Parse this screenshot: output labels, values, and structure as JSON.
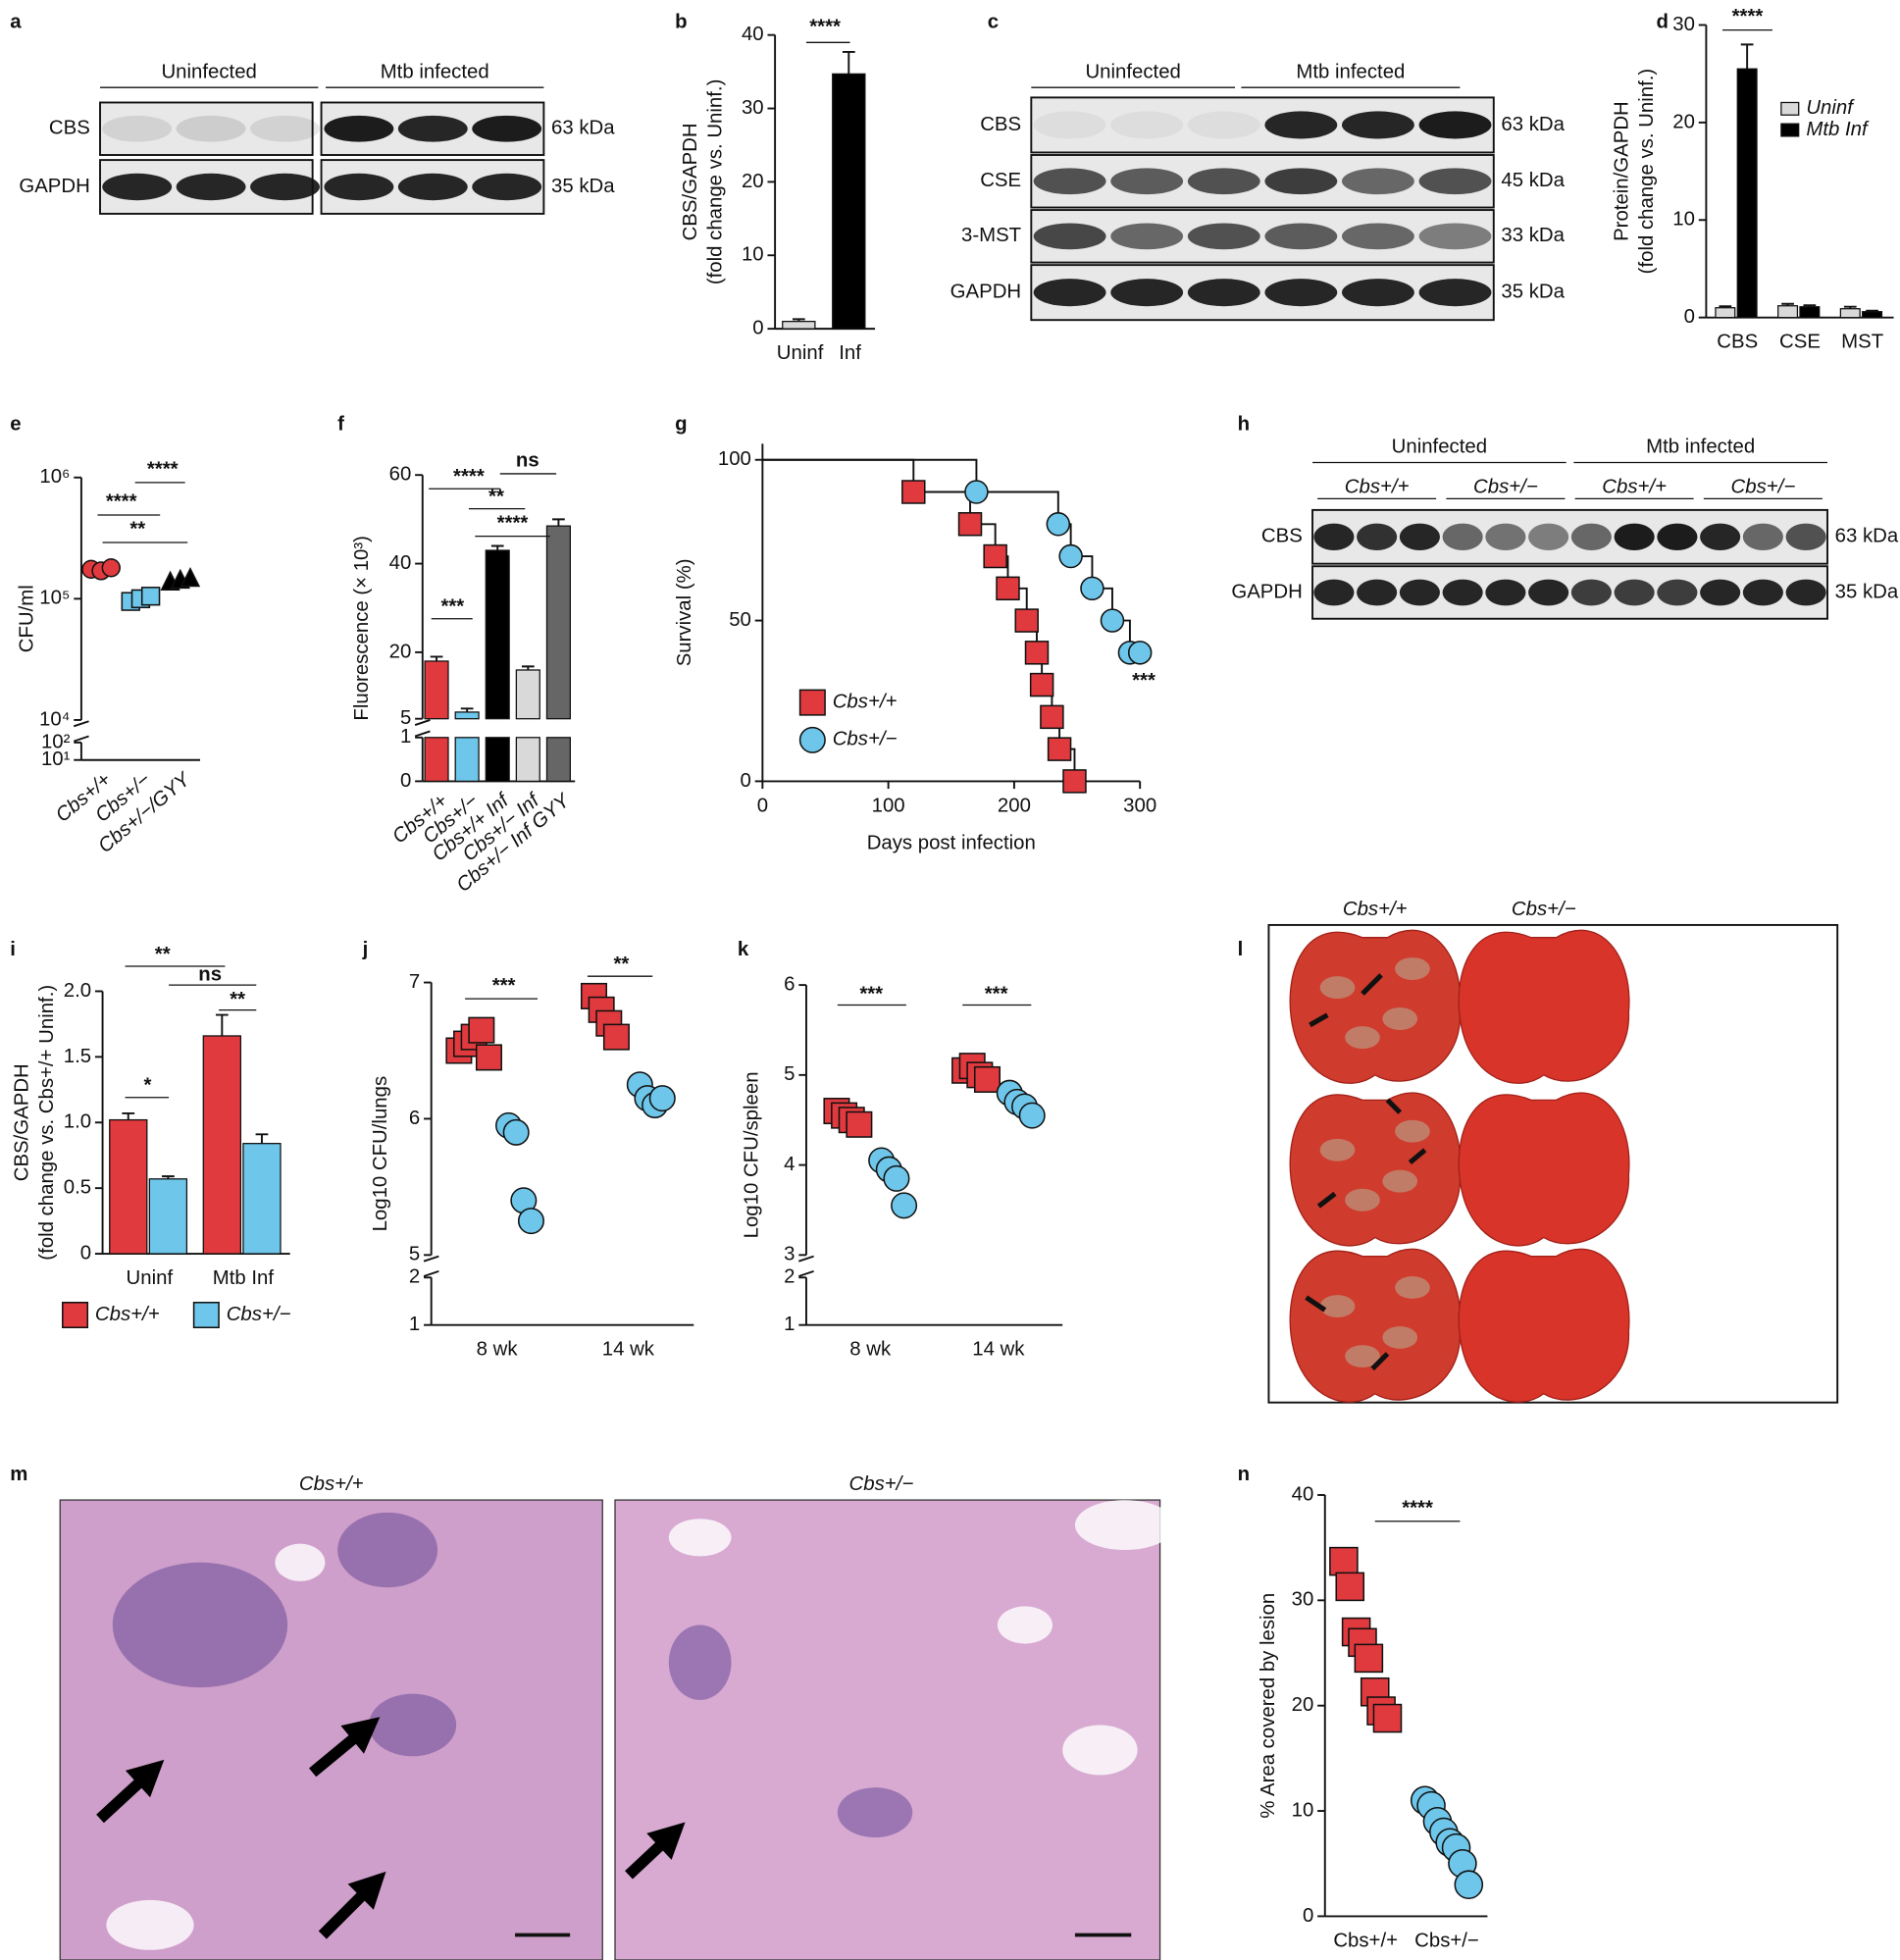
{
  "panel_letters": [
    "a",
    "b",
    "c",
    "d",
    "e",
    "f",
    "g",
    "h",
    "i",
    "j",
    "k",
    "l",
    "m",
    "n"
  ],
  "blots": [
    {
      "groups": [
        "Uninfected",
        "Mtb infected"
      ],
      "rows": [
        "CBS",
        "GAPDH"
      ],
      "sizes": [
        "63 kDa",
        "35 kDa"
      ]
    },
    {
      "groups": [
        "Uninfected",
        "Mtb infected"
      ],
      "rows": [
        "CBS",
        "CSE",
        "3-MST",
        "GAPDH"
      ],
      "sizes": [
        "63 kDa",
        "45 kDa",
        "33 kDa",
        "35 kDa"
      ]
    },
    {
      "groups": [
        "Uninfected",
        "Mtb infected"
      ],
      "subgroups": [
        "Cbs+/+",
        "Cbs+/−",
        "Cbs+/+",
        "Cbs+/−"
      ],
      "rows": [
        "CBS",
        "GAPDH"
      ],
      "sizes": [
        "63 kDa",
        "35 kDa"
      ]
    }
  ],
  "lungs": {
    "columns": [
      "Cbs+/+",
      "Cbs+/−"
    ]
  },
  "histology": {
    "titles": [
      "Cbs+/+",
      "Cbs+/−"
    ]
  },
  "chart_data": [
    {
      "type": "bar",
      "ylabel": [
        "CBS/GAPDH",
        "(fold change vs. Uninf.)"
      ],
      "categories": [
        "Uninf",
        "Inf"
      ],
      "values": [
        1,
        34.7
      ],
      "errors": [
        0.3,
        3
      ],
      "colors": [
        "#d9d9d9",
        "#000000"
      ],
      "ylim": [
        0,
        40
      ],
      "yticks": [
        0,
        10,
        20,
        30,
        40
      ],
      "annotations": [
        "****"
      ]
    },
    {
      "type": "bar",
      "ylabel": [
        "Protein/GAPDH",
        "(fold change vs. Uninf.)"
      ],
      "categories": [
        "CBS",
        "CSE",
        "MST"
      ],
      "series": [
        {
          "name": "Uninf",
          "color": "#d9d9d9",
          "values": [
            1,
            1.2,
            0.9
          ],
          "errors": [
            0.15,
            0.2,
            0.2
          ]
        },
        {
          "name": "Mtb Inf",
          "color": "#000000",
          "values": [
            25.5,
            1.1,
            0.6
          ],
          "errors": [
            2.5,
            0.15,
            0.1
          ]
        }
      ],
      "ylim": [
        0,
        30
      ],
      "yticks": [
        0,
        10,
        20,
        30
      ],
      "annotations": [
        "****"
      ],
      "legend": "upper right"
    },
    {
      "type": "scatter",
      "ylabel": "CFU/ml",
      "categories": [
        "Cbs+/+",
        "Cbs+/−",
        "Cbs+/−/GYY"
      ],
      "log_y": true,
      "series": [
        {
          "values": [
            [
              175000,
              170000,
              180000
            ],
            [
              95000,
              100000,
              105000
            ],
            [
              140000,
              145000,
              150000
            ]
          ],
          "colors": [
            "#e03a3e",
            "#6ec6ea",
            "#000000"
          ],
          "markers": [
            "circle",
            "square",
            "triangle"
          ]
        }
      ],
      "ylim": [
        10000,
        1000000
      ],
      "yticks": [
        {
          "value": 10000,
          "label": "10⁴"
        },
        {
          "value": 100000,
          "label": "10⁵"
        },
        {
          "value": 1000000,
          "label": "10⁶"
        }
      ],
      "ylim_lower": [
        10,
        100
      ],
      "yticks_lower": [
        {
          "value": 10,
          "label": "10¹"
        },
        {
          "value": 100,
          "label": "10²"
        }
      ],
      "annotations": [
        "****",
        "****",
        "**"
      ]
    },
    {
      "type": "bar",
      "ylabel": "Fluorescence (× 10³)",
      "categories": [
        "Cbs+/+",
        "Cbs+/−",
        "Cbs+/+ Inf",
        "Cbs+/− Inf",
        "Cbs+/− Inf GYY"
      ],
      "values": [
        18,
        6.5,
        43,
        16,
        48.5
      ],
      "errors": [
        1,
        0.8,
        1,
        0.8,
        1.5
      ],
      "colors": [
        "#e03a3e",
        "#6ec6ea",
        "#000000",
        "#d9d9d9",
        "#666666"
      ],
      "ylim": [
        5,
        60
      ],
      "yticks": [
        5,
        20,
        40,
        60
      ],
      "ylim_lower": [
        0,
        1
      ],
      "yticks_lower": [
        0,
        1
      ],
      "annotations": [
        "****",
        "ns",
        "**",
        "****",
        "***"
      ]
    },
    {
      "type": "line",
      "ylabel": "Survival (%)",
      "xlabel": "Days post infection",
      "series": [
        {
          "name": "Cbs+/+",
          "color": "#e03a3e",
          "marker": "square",
          "x": [
            0,
            120,
            165,
            185,
            195,
            210,
            218,
            222,
            230,
            236,
            248
          ],
          "values": [
            100,
            90,
            80,
            70,
            60,
            50,
            40,
            30,
            20,
            10,
            0
          ]
        },
        {
          "name": "Cbs+/−",
          "color": "#6ec6ea",
          "marker": "circle",
          "x": [
            0,
            170,
            235,
            245,
            262,
            278,
            292,
            300
          ],
          "values": [
            100,
            90,
            80,
            70,
            60,
            50,
            40,
            40
          ]
        }
      ],
      "xlim": [
        0,
        300
      ],
      "xticks": [
        0,
        100,
        200,
        300
      ],
      "ylim": [
        0,
        105
      ],
      "yticks": [
        0,
        50,
        100
      ],
      "annotations": [
        "***"
      ],
      "legend": "lower left"
    },
    {
      "type": "bar",
      "ylabel": [
        "CBS/GAPDH",
        "(fold change vs. Cbs+/+ Uninf.)"
      ],
      "categories": [
        "Uninf",
        "Mtb Inf"
      ],
      "series": [
        {
          "name": "Cbs+/+",
          "color": "#e03a3e",
          "values": [
            1.02,
            1.66
          ],
          "errors": [
            0.05,
            0.16
          ]
        },
        {
          "name": "Cbs+/−",
          "color": "#6ec6ea",
          "values": [
            0.57,
            0.84
          ],
          "errors": [
            0.02,
            0.07
          ]
        }
      ],
      "ylim": [
        0,
        2
      ],
      "yticks": [
        0,
        0.5,
        {
          "value": 1,
          "label": "1.0"
        },
        1.5,
        {
          "value": 2,
          "label": "2.0"
        }
      ],
      "annotations": [
        "**",
        "ns",
        "**",
        "*"
      ],
      "legend": "bottom"
    },
    {
      "type": "scatter",
      "ylabel": "Log10 CFU/lungs",
      "categories": [
        "8 wk",
        "14 wk"
      ],
      "series": [
        {
          "color": "#e03a3e",
          "marker": "square",
          "values": [
            [
              6.5,
              6.55,
              6.6,
              6.65,
              6.45
            ],
            [
              6.9,
              6.8,
              6.7,
              6.6
            ]
          ]
        },
        {
          "color": "#6ec6ea",
          "marker": "circle",
          "values": [
            [
              5.95,
              5.9,
              5.4,
              5.25
            ],
            [
              6.25,
              6.15,
              6.1,
              6.15
            ]
          ]
        }
      ],
      "ylim": [
        5,
        7
      ],
      "yticks": [
        5,
        6,
        7
      ],
      "ylim_lower": [
        1,
        2
      ],
      "yticks_lower": [
        1,
        2
      ],
      "annotations": [
        "***",
        "**"
      ]
    },
    {
      "type": "scatter",
      "ylabel": "Log10 CFU/spleen",
      "categories": [
        "8 wk",
        "14 wk"
      ],
      "series": [
        {
          "color": "#e03a3e",
          "marker": "square",
          "values": [
            [
              4.6,
              4.55,
              4.5,
              4.45
            ],
            [
              5.05,
              5.1,
              5.0,
              4.95
            ]
          ]
        },
        {
          "color": "#6ec6ea",
          "marker": "circle",
          "values": [
            [
              4.05,
              3.95,
              3.85,
              3.55
            ],
            [
              4.8,
              4.7,
              4.65,
              4.55
            ]
          ]
        }
      ],
      "ylim": [
        3,
        6
      ],
      "yticks": [
        3,
        4,
        5,
        6
      ],
      "ylim_lower": [
        1,
        2
      ],
      "yticks_lower": [
        1,
        2
      ],
      "annotations": [
        "***",
        "***"
      ]
    },
    {
      "type": "scatter",
      "ylabel": "% Area covered by lesion",
      "categories": [
        "Cbs+/+",
        "Cbs+/−"
      ],
      "series": [
        {
          "colors": [
            "#e03a3e",
            "#6ec6ea"
          ],
          "markers": [
            "square",
            "circle"
          ],
          "values": [
            [
              33.7,
              31.3,
              27,
              26,
              24.5,
              21.3,
              19.5,
              18.8
            ],
            [
              11,
              10.5,
              9,
              8,
              7,
              6.5,
              5,
              3
            ]
          ]
        }
      ],
      "ylim": [
        0,
        40
      ],
      "yticks": [
        0,
        10,
        20,
        30,
        40
      ],
      "annotations": [
        "****"
      ]
    }
  ]
}
